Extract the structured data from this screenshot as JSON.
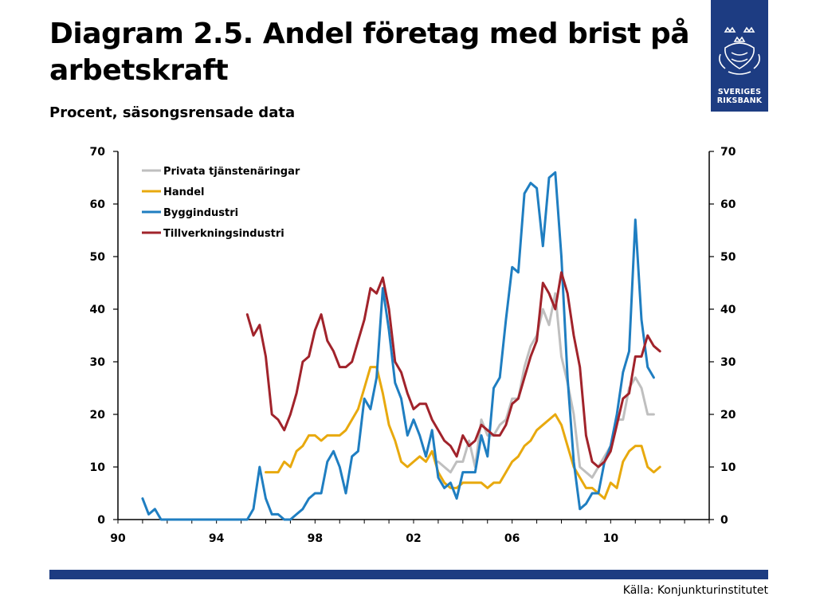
{
  "header": {
    "title": "Diagram 2.5. Andel företag med brist på arbetskraft",
    "subtitle": "Procent, säsongsrensade data"
  },
  "logo": {
    "line1": "SVERIGES",
    "line2": "RIKSBANK",
    "emblem": "riksbank-crest-icon",
    "color": "#1d3c82"
  },
  "footer": {
    "source": "Källa: Konjunkturinstitutet",
    "bar_color": "#1d3c82"
  },
  "chart_data": {
    "type": "line",
    "title": "Diagram 2.5. Andel företag med brist på arbetskraft",
    "subtitle": "Procent, säsongsrensade data",
    "xlabel": "",
    "ylabel": "",
    "xlim": [
      1990,
      2014
    ],
    "ylim": [
      0,
      70
    ],
    "yticks": [
      0,
      10,
      20,
      30,
      40,
      50,
      60,
      70
    ],
    "xticks": [
      {
        "value": 1990,
        "label": "90"
      },
      {
        "value": 1994,
        "label": "94"
      },
      {
        "value": 1998,
        "label": "98"
      },
      {
        "value": 2002,
        "label": "02"
      },
      {
        "value": 2006,
        "label": "06"
      },
      {
        "value": 2010,
        "label": "10"
      }
    ],
    "right_axis": true,
    "grid": false,
    "legend_position": "top-left",
    "x_step": 0.25,
    "series": [
      {
        "name": "Privata tjänstenäringar",
        "color": "#bfbfbf",
        "x_start": 2003.0,
        "values": [
          11,
          10,
          9,
          11,
          11,
          15,
          10,
          19,
          16,
          16,
          18,
          19,
          23,
          23,
          29,
          33,
          35,
          40,
          37,
          43,
          31,
          26,
          20,
          10,
          9,
          8,
          10,
          12,
          14,
          19,
          19,
          25,
          27,
          25,
          20,
          20
        ]
      },
      {
        "name": "Handel",
        "color": "#e8a90e",
        "x_start": 1996.0,
        "values": [
          9,
          9,
          9,
          11,
          10,
          13,
          14,
          16,
          16,
          15,
          16,
          16,
          16,
          17,
          19,
          21,
          25,
          29,
          29,
          24,
          18,
          15,
          11,
          10,
          11,
          12,
          11,
          13,
          9,
          7,
          6,
          6,
          7,
          7,
          7,
          7,
          6,
          7,
          7,
          9,
          11,
          12,
          14,
          15,
          17,
          18,
          19,
          20,
          18,
          14,
          10,
          8,
          6,
          6,
          5,
          4,
          7,
          6,
          11,
          13,
          14,
          14,
          10,
          9,
          10
        ]
      },
      {
        "name": "Byggindustri",
        "color": "#1f7ec1",
        "x_start": 1991.0,
        "values": [
          4,
          1,
          2,
          0,
          0,
          0,
          0,
          0,
          0,
          0,
          0,
          0,
          0,
          0,
          0,
          0,
          0,
          0,
          2,
          10,
          4,
          1,
          1,
          0,
          0,
          1,
          2,
          4,
          5,
          5,
          11,
          13,
          10,
          5,
          12,
          13,
          23,
          21,
          27,
          44,
          36,
          26,
          23,
          16,
          19,
          16,
          12,
          17,
          8,
          6,
          7,
          4,
          9,
          9,
          9,
          16,
          12,
          25,
          27,
          38,
          48,
          47,
          62,
          64,
          63,
          52,
          65,
          66,
          50,
          27,
          11,
          2,
          3,
          5,
          5,
          11,
          14,
          20,
          28,
          32,
          57,
          38,
          29,
          27
        ]
      },
      {
        "name": "Tillverkningsindustri",
        "color": "#a1232b",
        "x_start": 1995.25,
        "values": [
          39,
          35,
          37,
          31,
          20,
          19,
          17,
          20,
          24,
          30,
          31,
          36,
          39,
          34,
          32,
          29,
          29,
          30,
          34,
          38,
          44,
          43,
          46,
          40,
          30,
          28,
          24,
          21,
          22,
          22,
          19,
          17,
          15,
          14,
          12,
          16,
          14,
          15,
          18,
          17,
          16,
          16,
          18,
          22,
          23,
          27,
          31,
          34,
          45,
          43,
          40,
          47,
          43,
          35,
          29,
          16,
          11,
          10,
          11,
          13,
          18,
          23,
          24,
          31,
          31,
          35,
          33,
          32
        ]
      }
    ]
  }
}
